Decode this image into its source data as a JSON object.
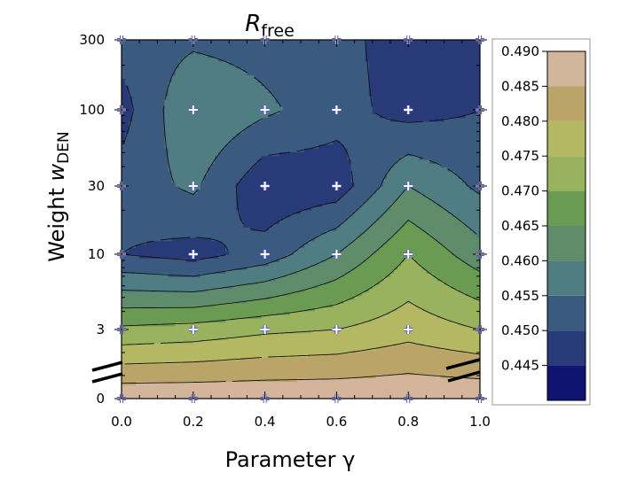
{
  "chart_data": {
    "type": "heatmap",
    "subtype": "filled-contour",
    "title": {
      "main": "R",
      "subscript": "free"
    },
    "xlabel": "Parameter γ",
    "ylabel": {
      "main": "Weight ",
      "italic": "w",
      "subscript": "DEN"
    },
    "x": [
      0.0,
      0.2,
      0.4,
      0.6,
      0.8,
      1.0
    ],
    "y": [
      0,
      3,
      10,
      30,
      100,
      300
    ],
    "x_tick_labels": [
      "0.0",
      "0.2",
      "0.4",
      "0.6",
      "0.8",
      "1.0"
    ],
    "y_tick_labels": [
      "0",
      "3",
      "10",
      "30",
      "100",
      "300"
    ],
    "xlim": [
      0.0,
      1.0
    ],
    "y_scale": "log with broken axis between 0 and 3",
    "grid": false,
    "sample_markers": "white plus at each grid point",
    "z": [
      [
        0.489,
        0.489,
        0.489,
        0.489,
        0.489,
        0.489
      ],
      [
        0.471,
        0.472,
        0.474,
        0.475,
        0.478,
        0.475
      ],
      [
        0.45,
        0.448,
        0.452,
        0.46,
        0.47,
        0.462
      ],
      [
        0.452,
        0.456,
        0.446,
        0.447,
        0.46,
        0.454
      ],
      [
        0.448,
        0.46,
        0.456,
        0.452,
        0.448,
        0.45
      ],
      [
        0.452,
        0.454,
        0.453,
        0.452,
        0.447,
        0.45
      ]
    ],
    "colorbar": {
      "levels": [
        0.445,
        0.45,
        0.455,
        0.46,
        0.465,
        0.47,
        0.475,
        0.48,
        0.485,
        0.49
      ],
      "tick_labels": [
        "0.445",
        "0.450",
        "0.455",
        "0.460",
        "0.465",
        "0.470",
        "0.475",
        "0.480",
        "0.485",
        "0.490"
      ],
      "range": [
        0.44,
        0.49
      ],
      "colors": [
        "#0e1470",
        "#283a78",
        "#3b5a80",
        "#4f7d82",
        "#5f8c6a",
        "#6a9b52",
        "#98b25e",
        "#b4b863",
        "#bba468",
        "#d3b59b"
      ],
      "placement": "right"
    }
  }
}
